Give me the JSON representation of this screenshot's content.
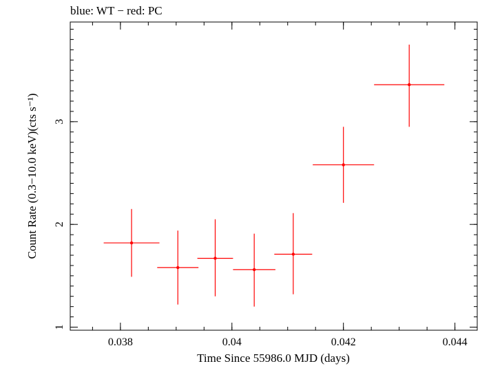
{
  "chart_data": {
    "type": "scatter",
    "title": "blue: WT − red: PC",
    "xlabel": "Time Since 55986.0 MJD (days)",
    "ylabel": "Count Rate (0.3−10.0 keV)(cts s⁻¹)",
    "xlim": [
      0.0371,
      0.0444
    ],
    "ylim": [
      0.97,
      3.97
    ],
    "x_ticks": [
      0.038,
      0.04,
      0.042,
      0.044
    ],
    "x_tick_labels": [
      "0.038",
      "0.04",
      "0.042",
      "0.044"
    ],
    "x_minor_step": 0.0005,
    "y_ticks": [
      1,
      2,
      3
    ],
    "y_tick_labels": [
      "1",
      "2",
      "3"
    ],
    "y_minor_step": 0.1,
    "grid": false,
    "series": [
      {
        "color": "#ff0000",
        "points": [
          {
            "x": 0.0382,
            "xerr": 0.0005,
            "y": 1.82,
            "ylo": 1.49,
            "yhi": 2.15
          },
          {
            "x": 0.03903,
            "xerr": 0.00037,
            "y": 1.58,
            "ylo": 1.22,
            "yhi": 1.94
          },
          {
            "x": 0.0397,
            "xerr": 0.00032,
            "y": 1.67,
            "ylo": 1.3,
            "yhi": 2.05
          },
          {
            "x": 0.0404,
            "xerr": 0.00038,
            "y": 1.56,
            "ylo": 1.2,
            "yhi": 1.91
          },
          {
            "x": 0.0411,
            "xerr": 0.00034,
            "y": 1.71,
            "ylo": 1.32,
            "yhi": 2.11
          },
          {
            "x": 0.042,
            "xerr": 0.00055,
            "y": 2.58,
            "ylo": 2.21,
            "yhi": 2.95
          },
          {
            "x": 0.04318,
            "xerr": 0.00063,
            "y": 3.36,
            "ylo": 2.95,
            "yhi": 3.75
          }
        ]
      }
    ]
  }
}
